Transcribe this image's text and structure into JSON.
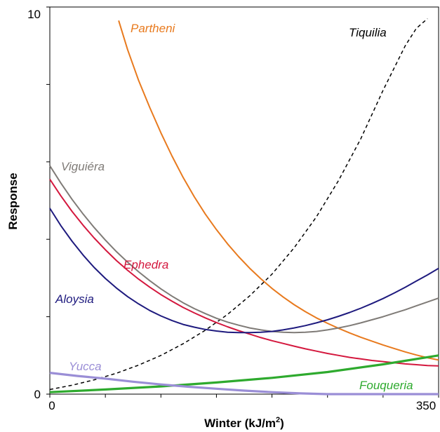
{
  "chart_data": {
    "type": "line",
    "title": "",
    "xlabel": "Winter (kJ/m",
    "xlabel_sup": "2",
    "xlabel_close": ")",
    "ylabel": "Response",
    "xlim": [
      0,
      350
    ],
    "ylim": [
      0,
      10
    ],
    "x_tick_labels": [
      "0",
      "350"
    ],
    "y_tick_labels": [
      "0",
      "10"
    ],
    "grid": false,
    "legend": "inline labels",
    "series": [
      {
        "name": "Partheni",
        "color": "#e87a1e",
        "dash": false,
        "x": [
          62,
          70,
          80,
          90,
          100,
          110,
          120,
          130,
          140,
          150,
          160,
          170,
          180,
          190,
          200,
          210,
          220,
          230,
          240,
          250,
          260,
          270,
          280,
          290,
          300,
          310,
          320,
          330,
          340,
          350
        ],
        "y": [
          9.65,
          8.9,
          8.1,
          7.4,
          6.75,
          6.15,
          5.6,
          5.1,
          4.65,
          4.25,
          3.88,
          3.55,
          3.25,
          2.98,
          2.73,
          2.51,
          2.31,
          2.13,
          1.97,
          1.83,
          1.7,
          1.58,
          1.47,
          1.37,
          1.27,
          1.18,
          1.09,
          1.01,
          0.94,
          0.88
        ]
      },
      {
        "name": "Tiquilia",
        "color": "#000000",
        "dash": true,
        "x": [
          0,
          20,
          40,
          60,
          80,
          100,
          120,
          140,
          160,
          180,
          200,
          220,
          240,
          260,
          280,
          300,
          320,
          330,
          340
        ],
        "y": [
          0.12,
          0.23,
          0.37,
          0.54,
          0.75,
          1.0,
          1.3,
          1.65,
          2.06,
          2.54,
          3.1,
          3.78,
          4.58,
          5.52,
          6.6,
          7.85,
          9.0,
          9.45,
          9.7
        ]
      },
      {
        "name": "Viguiéra",
        "color": "#7f7b77",
        "dash": false,
        "x": [
          0,
          10,
          20,
          30,
          40,
          50,
          60,
          70,
          80,
          90,
          100,
          110,
          120,
          130,
          140,
          150,
          160,
          170,
          180,
          190,
          200,
          210,
          220,
          230,
          240,
          250,
          260,
          270,
          280,
          290,
          300,
          310,
          320,
          330,
          340,
          350
        ],
        "y": [
          5.9,
          5.45,
          5.03,
          4.65,
          4.3,
          3.98,
          3.68,
          3.41,
          3.16,
          2.93,
          2.72,
          2.53,
          2.36,
          2.21,
          2.08,
          1.96,
          1.86,
          1.78,
          1.71,
          1.66,
          1.62,
          1.6,
          1.59,
          1.6,
          1.62,
          1.66,
          1.71,
          1.77,
          1.84,
          1.92,
          2.0,
          2.09,
          2.18,
          2.28,
          2.38,
          2.48
        ]
      },
      {
        "name": "Ephedra",
        "color": "#d4183e",
        "dash": false,
        "x": [
          0,
          10,
          20,
          30,
          40,
          50,
          60,
          70,
          80,
          90,
          100,
          110,
          120,
          130,
          140,
          150,
          160,
          170,
          180,
          190,
          200,
          210,
          220,
          230,
          240,
          250,
          260,
          270,
          280,
          290,
          300,
          310,
          320,
          330,
          340,
          350
        ],
        "y": [
          5.55,
          5.12,
          4.72,
          4.36,
          4.03,
          3.73,
          3.45,
          3.2,
          2.97,
          2.76,
          2.57,
          2.4,
          2.24,
          2.1,
          1.97,
          1.85,
          1.74,
          1.64,
          1.55,
          1.46,
          1.38,
          1.31,
          1.24,
          1.17,
          1.11,
          1.05,
          1.0,
          0.95,
          0.91,
          0.87,
          0.84,
          0.81,
          0.78,
          0.76,
          0.74,
          0.73
        ]
      },
      {
        "name": "Aloysia",
        "color": "#1e1a7e",
        "dash": false,
        "x": [
          0,
          10,
          20,
          30,
          40,
          50,
          60,
          70,
          80,
          90,
          100,
          110,
          120,
          130,
          140,
          150,
          160,
          170,
          180,
          190,
          200,
          210,
          220,
          230,
          240,
          250,
          260,
          270,
          280,
          290,
          300,
          310,
          320,
          330,
          340,
          350
        ],
        "y": [
          4.8,
          4.35,
          3.95,
          3.59,
          3.27,
          2.99,
          2.74,
          2.52,
          2.33,
          2.16,
          2.02,
          1.9,
          1.8,
          1.73,
          1.67,
          1.63,
          1.6,
          1.59,
          1.59,
          1.6,
          1.62,
          1.66,
          1.71,
          1.77,
          1.84,
          1.92,
          2.01,
          2.11,
          2.22,
          2.34,
          2.47,
          2.61,
          2.76,
          2.92,
          3.08,
          3.25
        ]
      },
      {
        "name": "Fouqueria",
        "color": "#2eaa2e",
        "dash": false,
        "x": [
          0,
          50,
          100,
          150,
          200,
          250,
          300,
          350
        ],
        "y": [
          0.05,
          0.12,
          0.2,
          0.3,
          0.42,
          0.57,
          0.77,
          1.0
        ]
      },
      {
        "name": "Yucca",
        "color": "#9a8ed6",
        "dash": false,
        "x": [
          0,
          25,
          50,
          75,
          100,
          125,
          150,
          175,
          200,
          225,
          250,
          275,
          300,
          325,
          350
        ],
        "y": [
          0.55,
          0.47,
          0.4,
          0.32,
          0.25,
          0.19,
          0.14,
          0.09,
          0.05,
          0.02,
          0.0,
          0.0,
          0.0,
          0.0,
          0.0
        ]
      }
    ]
  }
}
